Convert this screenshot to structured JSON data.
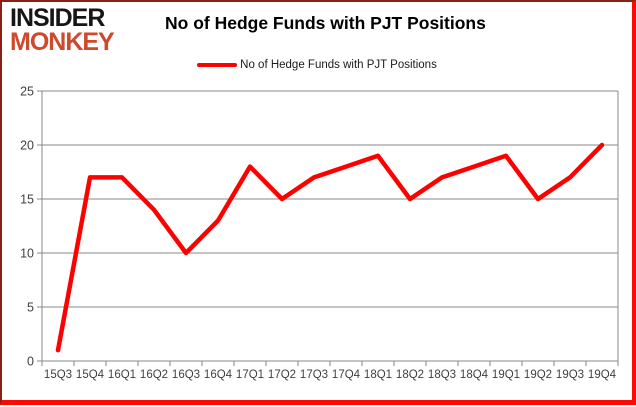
{
  "header": {
    "logo": {
      "line1": "INSIDER",
      "line2": "MONKEY"
    },
    "title": "No of Hedge Funds with PJT Positions"
  },
  "legend": {
    "label": "No of Hedge Funds with PJT Positions"
  },
  "colors": {
    "series_line": "#fe0000",
    "logo_black": "#161616",
    "logo_red": "#cd4a2d",
    "grid": "#8a8a8a",
    "axis_text": "#3f3f46",
    "frame_top_left": "#8a1f14",
    "frame_bottom_right": "#fb0b04"
  },
  "chart_data": {
    "type": "line",
    "title": "No of Hedge Funds with PJT Positions",
    "categories": [
      "15Q3",
      "15Q4",
      "16Q1",
      "16Q2",
      "16Q3",
      "16Q4",
      "17Q1",
      "17Q2",
      "17Q3",
      "17Q4",
      "18Q1",
      "18Q2",
      "18Q3",
      "18Q4",
      "19Q1",
      "19Q2",
      "19Q3",
      "19Q4"
    ],
    "series": [
      {
        "name": "No of Hedge Funds with PJT Positions",
        "values": [
          1,
          17,
          17,
          14,
          10,
          13,
          18,
          15,
          17,
          18,
          19,
          15,
          17,
          18,
          19,
          15,
          17,
          20
        ],
        "color": "#fe0000"
      }
    ],
    "xlabel": "",
    "ylabel": "",
    "ylim": [
      0,
      25
    ],
    "yticks": [
      0,
      5,
      10,
      15,
      20,
      25
    ],
    "grid": true,
    "legend_position": "top-center"
  }
}
